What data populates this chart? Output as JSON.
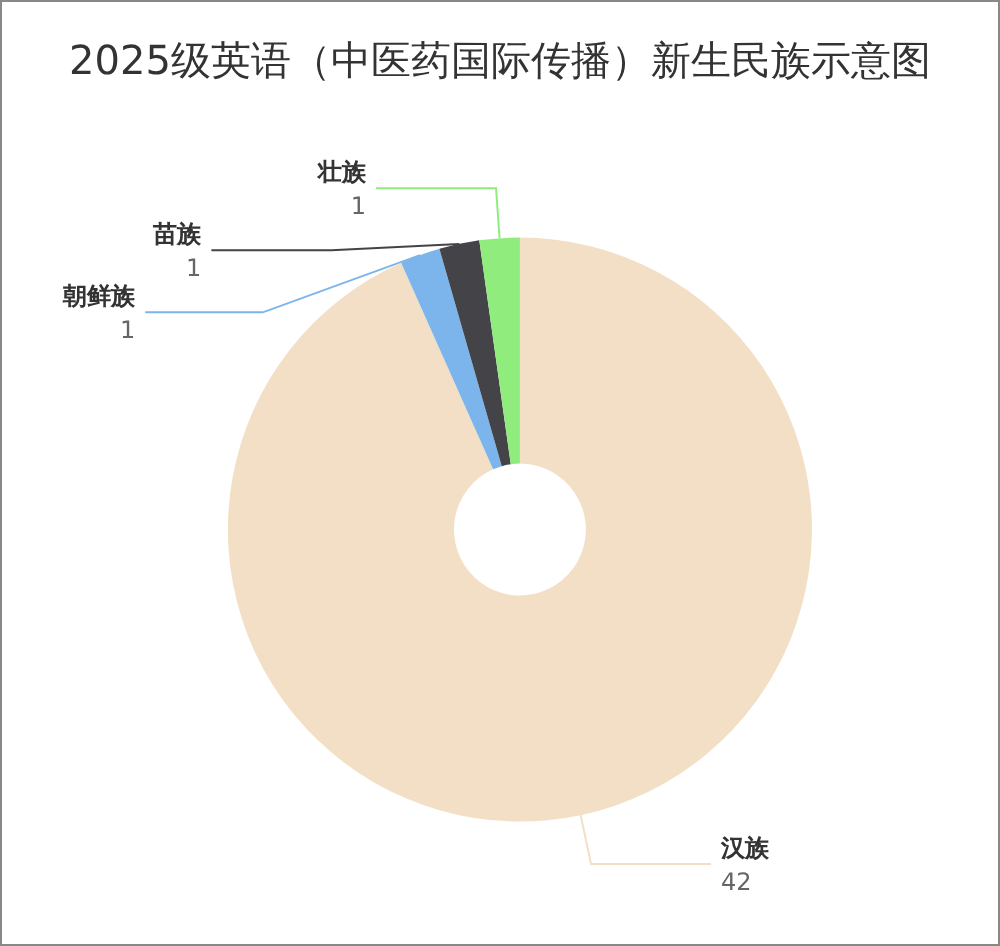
{
  "chart_data": {
    "type": "donut",
    "title": "2025级英语（中医药国际传播）新生民族示意图",
    "categories": [
      "汉族",
      "朝鲜族",
      "苗族",
      "壮族"
    ],
    "values": [
      42,
      1,
      1,
      1
    ],
    "colors": [
      "#f2dfc6",
      "#7cb5ec",
      "#434348",
      "#90ed7d"
    ],
    "data_labels": true,
    "legend": false
  }
}
